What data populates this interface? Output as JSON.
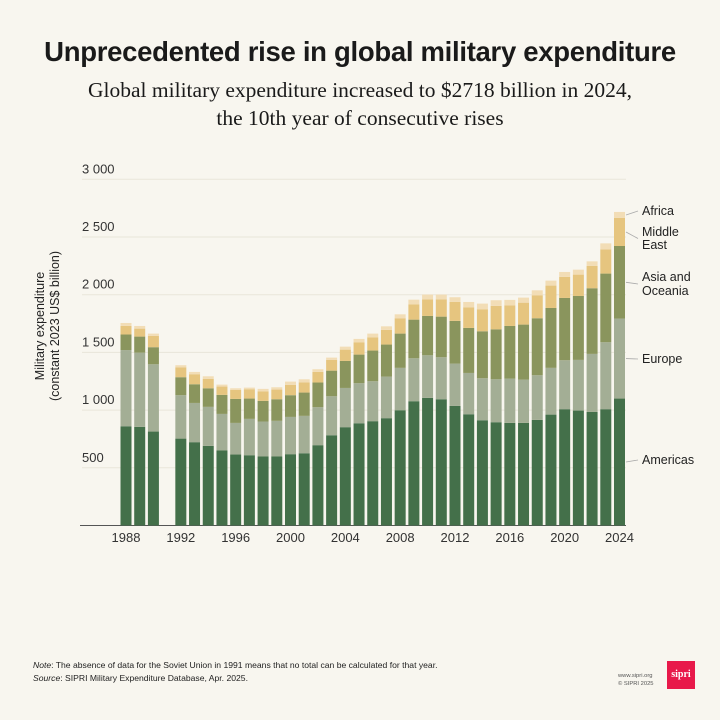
{
  "title": "Unprecedented rise in global military expenditure",
  "subtitle": [
    "Global military expenditure increased to $2718 billion in 2024,",
    "the 10th year of consecutive rises"
  ],
  "note_label": "Note",
  "note_text": ": The absence of data for the Soviet Union in 1991 means that no total can be calculated for that year.",
  "source_label": "Source",
  "source_text": ": SIPRI Military Expenditure Database, Apr. 2025.",
  "credits": {
    "url": "www.sipri.org",
    "copyright": "© SIPRI 2025",
    "logo": "sipri"
  },
  "chart_data": {
    "type": "bar",
    "stacked": true,
    "ylabel": [
      "Military expenditure",
      "(constant 2023 US$ billion)"
    ],
    "ylim": [
      0,
      3000
    ],
    "yticks": [
      500,
      1000,
      1500,
      2000,
      2500,
      3000
    ],
    "ytick_labels": [
      "500",
      "1 000",
      "1 500",
      "2 000",
      "2 500",
      "3 000"
    ],
    "xtick_labels": [
      "1988",
      "1992",
      "1996",
      "2000",
      "2004",
      "2008",
      "2012",
      "2016",
      "2020",
      "2024"
    ],
    "grid": true,
    "legend_placement": "right, labels aligned to last bar",
    "categories": [
      1988,
      1989,
      1990,
      1991,
      1992,
      1993,
      1994,
      1995,
      1996,
      1997,
      1998,
      1999,
      2000,
      2001,
      2002,
      2003,
      2004,
      2005,
      2006,
      2007,
      2008,
      2009,
      2010,
      2011,
      2012,
      2013,
      2014,
      2015,
      2016,
      2017,
      2018,
      2019,
      2020,
      2021,
      2022,
      2023,
      2024
    ],
    "series": [
      {
        "name": "Americas",
        "color": "#44704a",
        "values": [
          860,
          855,
          814,
          null,
          753,
          722,
          690,
          650,
          615,
          609,
          598,
          598,
          618,
          626,
          696,
          782,
          852,
          886,
          904,
          930,
          999,
          1077,
          1106,
          1094,
          1036,
          964,
          912,
          895,
          889,
          889,
          915,
          961,
          1008,
          996,
          984,
          1008,
          1100
        ]
      },
      {
        "name": "Europe",
        "color": "#a3ae95",
        "values": [
          660,
          643,
          583,
          null,
          376,
          340,
          338,
          317,
          274,
          315,
          303,
          309,
          323,
          324,
          329,
          338,
          340,
          347,
          346,
          360,
          367,
          372,
          369,
          364,
          367,
          358,
          364,
          372,
          384,
          375,
          387,
          405,
          424,
          439,
          503,
          580,
          693
        ]
      },
      {
        "name": "Asia and Oceania",
        "color": "#8a955d",
        "values": [
          135,
          139,
          148,
          null,
          156,
          162,
          161,
          165,
          208,
          176,
          179,
          187,
          188,
          202,
          214,
          222,
          234,
          248,
          266,
          278,
          297,
          335,
          341,
          352,
          370,
          390,
          407,
          433,
          456,
          477,
          494,
          519,
          540,
          554,
          569,
          595,
          629
        ]
      },
      {
        "name": "Middle East",
        "color": "#e6c57f",
        "values": [
          75,
          69,
          98,
          null,
          86,
          87,
          81,
          72,
          78,
          81,
          83,
          84,
          89,
          87,
          92,
          93,
          98,
          107,
          115,
          127,
          133,
          133,
          144,
          150,
          164,
          179,
          191,
          203,
          179,
          190,
          199,
          194,
          182,
          185,
          193,
          210,
          243
        ]
      },
      {
        "name": "Africa",
        "color": "#f2ddb6",
        "values": [
          25,
          23,
          20,
          null,
          18,
          20,
          23,
          17,
          14,
          14,
          21,
          20,
          29,
          28,
          23,
          20,
          26,
          29,
          32,
          31,
          34,
          40,
          41,
          41,
          41,
          46,
          49,
          49,
          47,
          44,
          43,
          43,
          43,
          43,
          40,
          52,
          52
        ]
      }
    ]
  }
}
